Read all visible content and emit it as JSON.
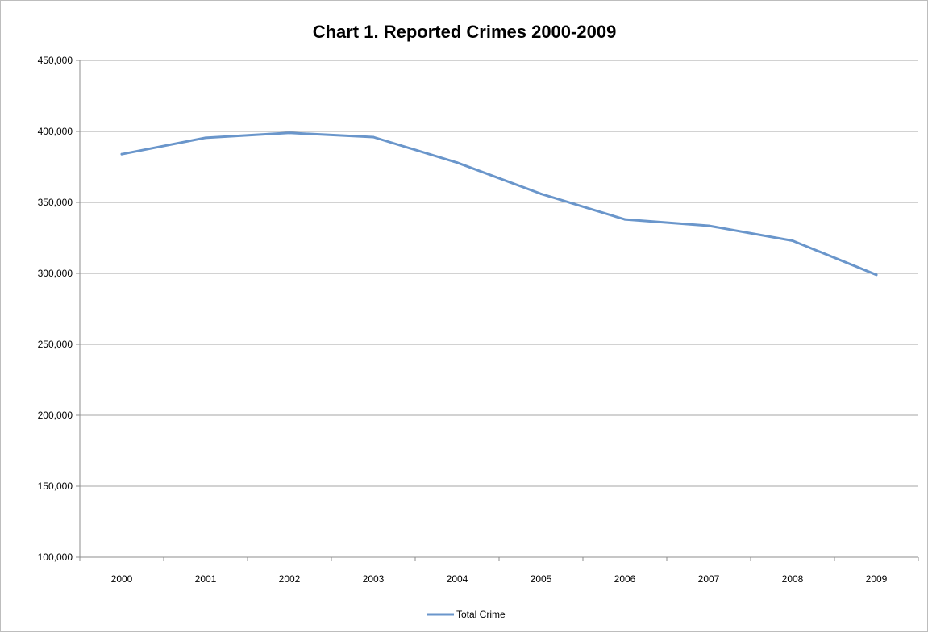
{
  "chart_data": {
    "type": "line",
    "title": "Chart 1. Reported Crimes 2000-2009",
    "xlabel": "",
    "ylabel": "",
    "categories": [
      "2000",
      "2001",
      "2002",
      "2003",
      "2004",
      "2005",
      "2006",
      "2007",
      "2008",
      "2009"
    ],
    "series": [
      {
        "name": "Total Crime",
        "color": "#6a96cb",
        "values": [
          384000,
          395500,
          399000,
          396000,
          378000,
          356000,
          338000,
          333500,
          323000,
          299000
        ]
      }
    ],
    "ylim": [
      100000,
      450000
    ],
    "yticks": [
      "100,000",
      "150,000",
      "200,000",
      "250,000",
      "300,000",
      "350,000",
      "400,000",
      "450,000"
    ],
    "ytick_values": [
      100000,
      150000,
      200000,
      250000,
      300000,
      350000,
      400000,
      450000
    ],
    "grid": "horizontal",
    "legend_position": "bottom"
  }
}
